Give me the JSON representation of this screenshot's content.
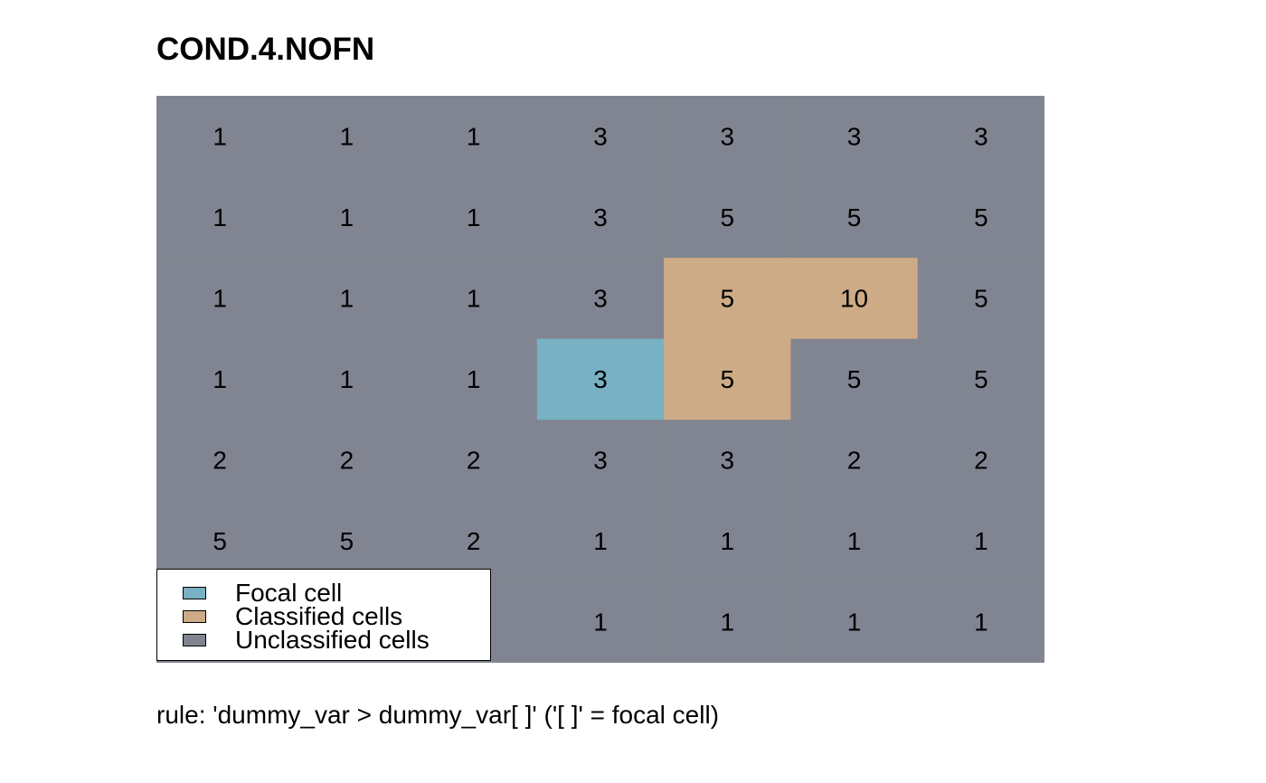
{
  "title": "COND.4.NOFN",
  "caption": "rule: 'dummy_var > dummy_var[ ]' ('[ ]' = focal cell)",
  "colors": {
    "focal": "#78b1c4",
    "classified": "#cdab86",
    "unclassified": "#818591"
  },
  "legend": {
    "items": [
      {
        "label": "Focal cell",
        "class": "focal"
      },
      {
        "label": "Classified cells",
        "class": "classified"
      },
      {
        "label": "Unclassified cells",
        "class": "unclassified"
      }
    ]
  },
  "chart_data": {
    "type": "heatmap",
    "title": "COND.4.NOFN",
    "ncol": 7,
    "nrow": 7,
    "values": [
      [
        1,
        1,
        1,
        3,
        3,
        3,
        3
      ],
      [
        1,
        1,
        1,
        3,
        5,
        5,
        5
      ],
      [
        1,
        1,
        1,
        3,
        5,
        10,
        5
      ],
      [
        1,
        1,
        1,
        3,
        5,
        5,
        5
      ],
      [
        2,
        2,
        2,
        3,
        3,
        2,
        2
      ],
      [
        5,
        5,
        2,
        1,
        1,
        1,
        1
      ],
      [
        null,
        null,
        null,
        1,
        1,
        1,
        1
      ]
    ],
    "classes": [
      [
        "u",
        "u",
        "u",
        "u",
        "u",
        "u",
        "u"
      ],
      [
        "u",
        "u",
        "u",
        "u",
        "u",
        "u",
        "u"
      ],
      [
        "u",
        "u",
        "u",
        "u",
        "c",
        "c",
        "u"
      ],
      [
        "u",
        "u",
        "u",
        "f",
        "c",
        "u",
        "u"
      ],
      [
        "u",
        "u",
        "u",
        "u",
        "u",
        "u",
        "u"
      ],
      [
        "u",
        "u",
        "u",
        "u",
        "u",
        "u",
        "u"
      ],
      [
        "u",
        "u",
        "u",
        "u",
        "u",
        "u",
        "u"
      ]
    ],
    "legend_position": "bottom-left"
  }
}
